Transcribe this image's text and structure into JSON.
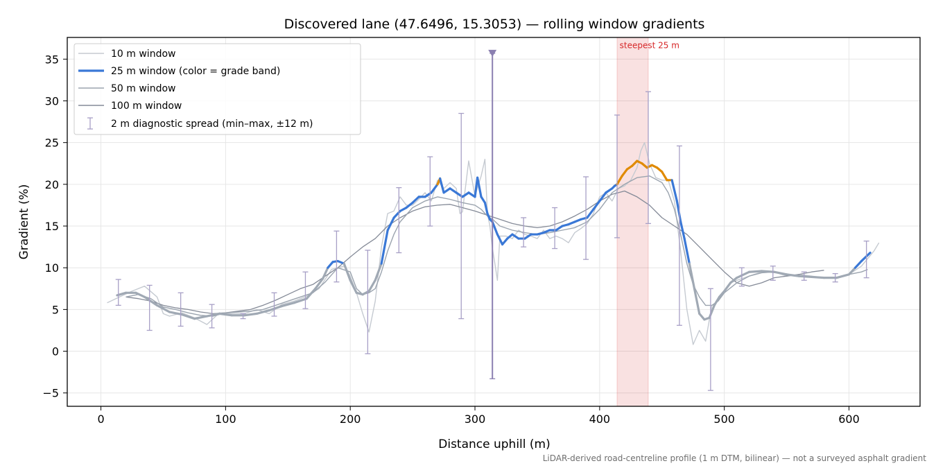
{
  "chart_data": {
    "type": "line",
    "title": "Discovered lane (47.6496, 15.3053) — rolling window gradients",
    "xlabel": "Distance uphill (m)",
    "ylabel": "Gradient (%)",
    "xlim": [
      -27,
      657
    ],
    "ylim": [
      -6.6,
      37.6
    ],
    "xticks": [
      0,
      100,
      200,
      300,
      400,
      500,
      600
    ],
    "yticks": [
      -5,
      0,
      5,
      10,
      15,
      20,
      25,
      30,
      35
    ],
    "xtick_labels": [
      "0",
      "100",
      "200",
      "300",
      "400",
      "500",
      "600"
    ],
    "ytick_labels": [
      "−5",
      "0",
      "5",
      "10",
      "15",
      "20",
      "25",
      "30",
      "35"
    ],
    "grid": true,
    "legend_placement": "top-left",
    "footnote": "LiDAR-derived road-centreline profile (1 m DTM, bilinear) — not a surveyed asphalt gradient",
    "annotation": {
      "text": "steepest 25 m",
      "x": 416,
      "y": 36.3
    },
    "highlight_band": {
      "x_start": 414,
      "x_end": 439,
      "color": "#d62728"
    },
    "marker": {
      "x": 314,
      "y": 35.7
    },
    "colors": {
      "w10": "#c5cad1",
      "w25_blue": "#3a78d6",
      "w25_orange": "#e08a00",
      "w25_gray": "#a0a9b4",
      "w50": "#9aa3ae",
      "w100": "#848a97",
      "errorbar": "#a79fc6",
      "marker": "#8a7fb0"
    },
    "series": [
      {
        "name": "10 m window",
        "x": [
          5,
          15,
          25,
          35,
          45,
          50,
          55,
          65,
          75,
          85,
          95,
          105,
          115,
          125,
          135,
          145,
          155,
          165,
          175,
          185,
          195,
          200,
          205,
          210,
          215,
          220,
          225,
          230,
          235,
          240,
          245,
          250,
          255,
          260,
          265,
          270,
          275,
          280,
          285,
          288,
          290,
          295,
          300,
          305,
          308,
          310,
          312,
          314,
          316,
          318,
          320,
          325,
          330,
          335,
          340,
          345,
          350,
          355,
          360,
          365,
          370,
          375,
          380,
          385,
          390,
          395,
          400,
          405,
          410,
          415,
          420,
          425,
          430,
          433,
          436,
          440,
          445,
          450,
          455,
          460,
          465,
          470,
          475,
          480,
          485,
          490,
          495,
          500,
          505,
          510,
          520,
          530,
          540,
          550,
          560,
          570,
          580,
          590,
          600,
          610,
          620,
          624
        ],
        "y": [
          5.8,
          6.5,
          7.2,
          7.8,
          6.5,
          4.5,
          4.2,
          4.6,
          4.0,
          3.2,
          4.6,
          4.5,
          4.5,
          5.0,
          4.5,
          5.6,
          6.0,
          6.6,
          7.5,
          9.8,
          10.2,
          9.0,
          7.0,
          4.5,
          2.3,
          6.0,
          12.5,
          16.5,
          16.8,
          18.5,
          17.5,
          17.5,
          18.2,
          19.0,
          18.0,
          20.5,
          19.5,
          20.2,
          19.5,
          16.5,
          16.7,
          22.8,
          18.6,
          21.0,
          23.0,
          16.5,
          15.0,
          12.3,
          10.5,
          8.5,
          13.8,
          13.8,
          13.5,
          14.5,
          14.0,
          13.8,
          13.5,
          14.5,
          13.5,
          13.8,
          13.5,
          13.0,
          14.2,
          14.7,
          15.3,
          16.5,
          18.5,
          19.0,
          18.0,
          19.5,
          19.8,
          20.5,
          22.0,
          24.0,
          25.0,
          22.5,
          20.8,
          20.5,
          20.5,
          18.0,
          12.0,
          5.0,
          0.8,
          2.5,
          1.2,
          5.5,
          6.0,
          7.2,
          8.2,
          8.5,
          9.0,
          9.5,
          9.5,
          9.0,
          9.2,
          9.0,
          8.8,
          8.8,
          9.2,
          10.2,
          12.0,
          13.0
        ]
      },
      {
        "name": "25 m window (color = grade band)",
        "x": [
          13,
          20,
          28,
          35,
          45,
          55,
          65,
          75,
          85,
          95,
          105,
          115,
          125,
          135,
          145,
          155,
          165,
          172,
          178,
          182,
          186,
          190,
          195,
          200,
          205,
          210,
          215,
          220,
          225,
          230,
          235,
          240,
          245,
          250,
          255,
          260,
          265,
          270,
          272,
          275,
          280,
          285,
          290,
          295,
          300,
          302,
          305,
          308,
          310,
          312,
          314,
          318,
          322,
          326,
          330,
          335,
          340,
          345,
          350,
          355,
          360,
          365,
          370,
          375,
          380,
          385,
          390,
          395,
          400,
          405,
          410,
          412,
          414,
          418,
          422,
          426,
          430,
          434,
          438,
          442,
          446,
          450,
          454,
          458,
          462,
          465,
          468,
          472,
          476,
          480,
          484,
          488,
          492,
          496,
          500,
          505,
          510,
          520,
          530,
          540,
          550,
          560,
          570,
          580,
          590,
          600,
          605,
          610,
          617
        ],
        "y": [
          6.7,
          7.0,
          7.0,
          6.5,
          5.5,
          4.7,
          4.4,
          3.9,
          4.2,
          4.5,
          4.3,
          4.3,
          4.5,
          4.9,
          5.4,
          5.8,
          6.3,
          7.5,
          8.7,
          10.0,
          10.7,
          10.8,
          10.5,
          8.5,
          7.0,
          6.8,
          7.2,
          8.5,
          10.5,
          14.5,
          16.0,
          16.8,
          17.2,
          17.8,
          18.5,
          18.5,
          19.0,
          20.0,
          20.7,
          19.0,
          19.5,
          19.0,
          18.5,
          19.0,
          18.5,
          20.8,
          18.5,
          17.8,
          16.5,
          15.8,
          15.5,
          14.0,
          12.8,
          13.5,
          14.0,
          13.5,
          13.5,
          14.0,
          14.0,
          14.2,
          14.5,
          14.5,
          15.0,
          15.2,
          15.5,
          15.8,
          16.0,
          17.0,
          18.0,
          19.0,
          19.5,
          19.8,
          20.0,
          21.0,
          21.8,
          22.2,
          22.8,
          22.5,
          22.0,
          22.3,
          22.0,
          21.5,
          20.5,
          20.5,
          18.0,
          15.5,
          13.5,
          10.5,
          7.5,
          4.5,
          3.8,
          4.0,
          5.5,
          6.5,
          7.2,
          8.2,
          8.8,
          9.5,
          9.6,
          9.5,
          9.2,
          9.0,
          8.9,
          8.8,
          8.8,
          9.2,
          10.0,
          10.8,
          11.8
        ]
      },
      {
        "name": "50 m window",
        "x": [
          20,
          30,
          40,
          50,
          60,
          70,
          80,
          90,
          100,
          110,
          120,
          130,
          140,
          150,
          160,
          170,
          180,
          190,
          200,
          205,
          210,
          215,
          220,
          225,
          230,
          235,
          240,
          250,
          260,
          270,
          280,
          290,
          300,
          305,
          310,
          315,
          320,
          330,
          340,
          350,
          360,
          370,
          380,
          390,
          400,
          410,
          420,
          430,
          440,
          450,
          455,
          460,
          465,
          470,
          475,
          480,
          485,
          490,
          495,
          500,
          510,
          520,
          530,
          540,
          550,
          560,
          570,
          580,
          590,
          600,
          610,
          615
        ],
        "y": [
          6.5,
          6.8,
          6.3,
          5.3,
          5.0,
          4.6,
          4.3,
          4.2,
          4.6,
          4.7,
          4.8,
          5.0,
          5.5,
          6.0,
          6.5,
          7.0,
          8.3,
          10.0,
          9.5,
          7.5,
          6.8,
          7.0,
          7.5,
          9.5,
          12.0,
          14.0,
          15.5,
          17.2,
          18.0,
          18.5,
          18.2,
          17.8,
          17.5,
          17.0,
          16.2,
          15.7,
          15.0,
          14.5,
          14.2,
          14.0,
          14.2,
          14.5,
          14.8,
          15.5,
          17.0,
          19.0,
          20.0,
          20.8,
          21.0,
          20.2,
          19.0,
          17.0,
          14.0,
          10.5,
          8.0,
          6.5,
          5.5,
          5.5,
          6.0,
          7.0,
          8.2,
          9.0,
          9.4,
          9.5,
          9.2,
          9.0,
          8.9,
          8.8,
          8.8,
          9.2,
          9.5,
          9.8
        ]
      },
      {
        "name": "100 m window",
        "x": [
          20,
          30,
          40,
          50,
          60,
          70,
          80,
          90,
          100,
          110,
          120,
          130,
          140,
          150,
          160,
          170,
          180,
          190,
          200,
          210,
          220,
          230,
          240,
          250,
          260,
          270,
          280,
          290,
          300,
          310,
          320,
          330,
          340,
          350,
          360,
          370,
          380,
          390,
          400,
          410,
          420,
          430,
          440,
          450,
          460,
          470,
          480,
          490,
          500,
          510,
          520,
          530,
          540,
          550,
          560,
          570,
          580
        ],
        "y": [
          6.5,
          6.3,
          6.0,
          5.5,
          5.2,
          5.0,
          4.7,
          4.5,
          4.6,
          4.8,
          5.0,
          5.5,
          6.1,
          6.8,
          7.5,
          8.0,
          9.0,
          10.0,
          11.3,
          12.5,
          13.5,
          15.0,
          16.0,
          16.8,
          17.3,
          17.5,
          17.6,
          17.2,
          16.8,
          16.3,
          15.8,
          15.3,
          15.0,
          14.8,
          15.0,
          15.5,
          16.2,
          17.0,
          18.0,
          18.8,
          19.2,
          18.5,
          17.5,
          16.0,
          15.0,
          14.0,
          12.5,
          11.0,
          9.5,
          8.2,
          7.8,
          8.2,
          8.8,
          9.0,
          9.2,
          9.5,
          9.7
        ]
      },
      {
        "name": "2 m diagnostic spread (min–max, ±12 m)",
        "x": [
          14,
          39,
          64,
          89,
          114,
          139,
          164,
          189,
          214,
          239,
          264,
          289,
          314,
          339,
          364,
          389,
          414,
          439,
          464,
          489,
          514,
          539,
          564,
          589,
          614
        ],
        "ymin": [
          5.5,
          2.5,
          3.0,
          2.8,
          3.9,
          4.2,
          5.1,
          8.3,
          -0.3,
          11.8,
          15.0,
          3.9,
          -3.3,
          12.5,
          12.3,
          11.0,
          13.6,
          15.3,
          3.1,
          -4.7,
          7.8,
          8.5,
          8.5,
          8.3,
          8.8
        ],
        "ymax": [
          8.6,
          7.9,
          7.0,
          5.6,
          4.5,
          7.0,
          9.5,
          14.4,
          12.1,
          19.6,
          23.3,
          28.5,
          35.7,
          16.0,
          17.2,
          20.9,
          28.3,
          31.1,
          24.6,
          7.5,
          10.0,
          10.2,
          9.5,
          9.3,
          13.2
        ]
      }
    ]
  }
}
